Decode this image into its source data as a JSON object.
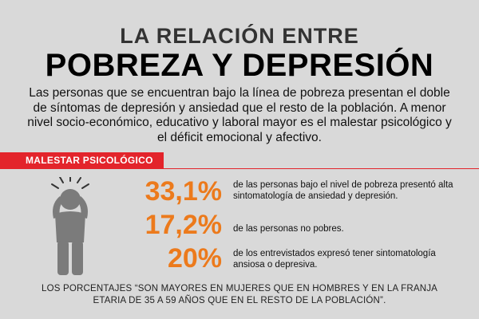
{
  "header": {
    "title_top": "LA RELACIÓN ENTRE",
    "title_main": "POBREZA Y DEPRESIÓN"
  },
  "intro": "Las personas que se encuentran bajo la línea de pobreza presentan el doble de síntomas de depresión y ansiedad que el resto de la población. A menor nivel socio-económico, educativo y laboral mayor es el malestar psicológico y el déficit emocional y afectivo.",
  "section": {
    "label": "MALESTAR PSICOLÓGICO",
    "accent_color": "#e3242b"
  },
  "figure_icon": "stressed-person-icon",
  "stats": [
    {
      "value": "33,1%",
      "description": "de las personas bajo el nivel de pobreza presentó alta sintomatología de ansiedad y depresión."
    },
    {
      "value": "17,2%",
      "description": "de las personas no pobres."
    },
    {
      "value": "20%",
      "description": "de los entrevistados expresó tener sintomatología ansiosa o depresiva."
    }
  ],
  "stat_color": "#ec7a1c",
  "footnote": "LOS PORCENTAJES “SON MAYORES EN MUJERES QUE EN HOMBRES Y EN LA FRANJA ETARIA DE 35 A 59 AÑOS  QUE EN EL RESTO DE LA POBLACIÓN”."
}
